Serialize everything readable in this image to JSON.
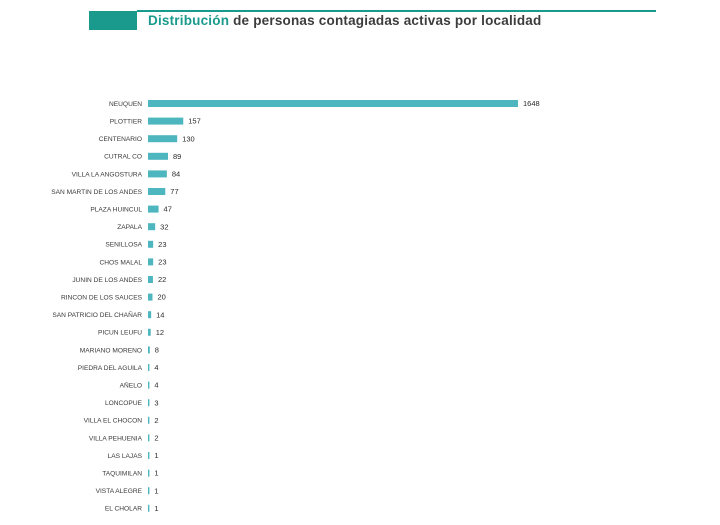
{
  "page": {
    "title_accent": "Distribución",
    "title_rest": " de personas contagiadas activas por localidad"
  },
  "colors": {
    "accent": "#1a9a8c",
    "bar": "#4db6be",
    "text": "#3c3c3c"
  },
  "chart_data": {
    "type": "bar",
    "orientation": "horizontal",
    "title": "Distribución de personas contagiadas activas por localidad",
    "categories": [
      "NEUQUEN",
      "PLOTTIER",
      "CENTENARIO",
      "CUTRAL CO",
      "VILLA LA ANGOSTURA",
      "SAN MARTIN DE LOS ANDES",
      "PLAZA HUINCUL",
      "ZAPALA",
      "SENILLOSA",
      "CHOS MALAL",
      "JUNIN DE LOS ANDES",
      "RINCON DE LOS SAUCES",
      "SAN PATRICIO DEL CHAÑAR",
      "PICUN LEUFU",
      "MARIANO MORENO",
      "PIEDRA DEL AGUILA",
      "AÑELO",
      "LONCOPUE",
      "VILLA EL CHOCON",
      "VILLA PEHUENIA",
      "LAS LAJAS",
      "TAQUIMILAN",
      "VISTA ALEGRE",
      "EL CHOLAR"
    ],
    "values": [
      1648,
      157,
      130,
      89,
      84,
      77,
      47,
      32,
      23,
      23,
      22,
      20,
      14,
      12,
      8,
      4,
      4,
      3,
      2,
      2,
      1,
      1,
      1,
      1
    ],
    "data_labels": true,
    "xlabel": "",
    "ylabel": "",
    "grid": false,
    "legend": "none"
  }
}
